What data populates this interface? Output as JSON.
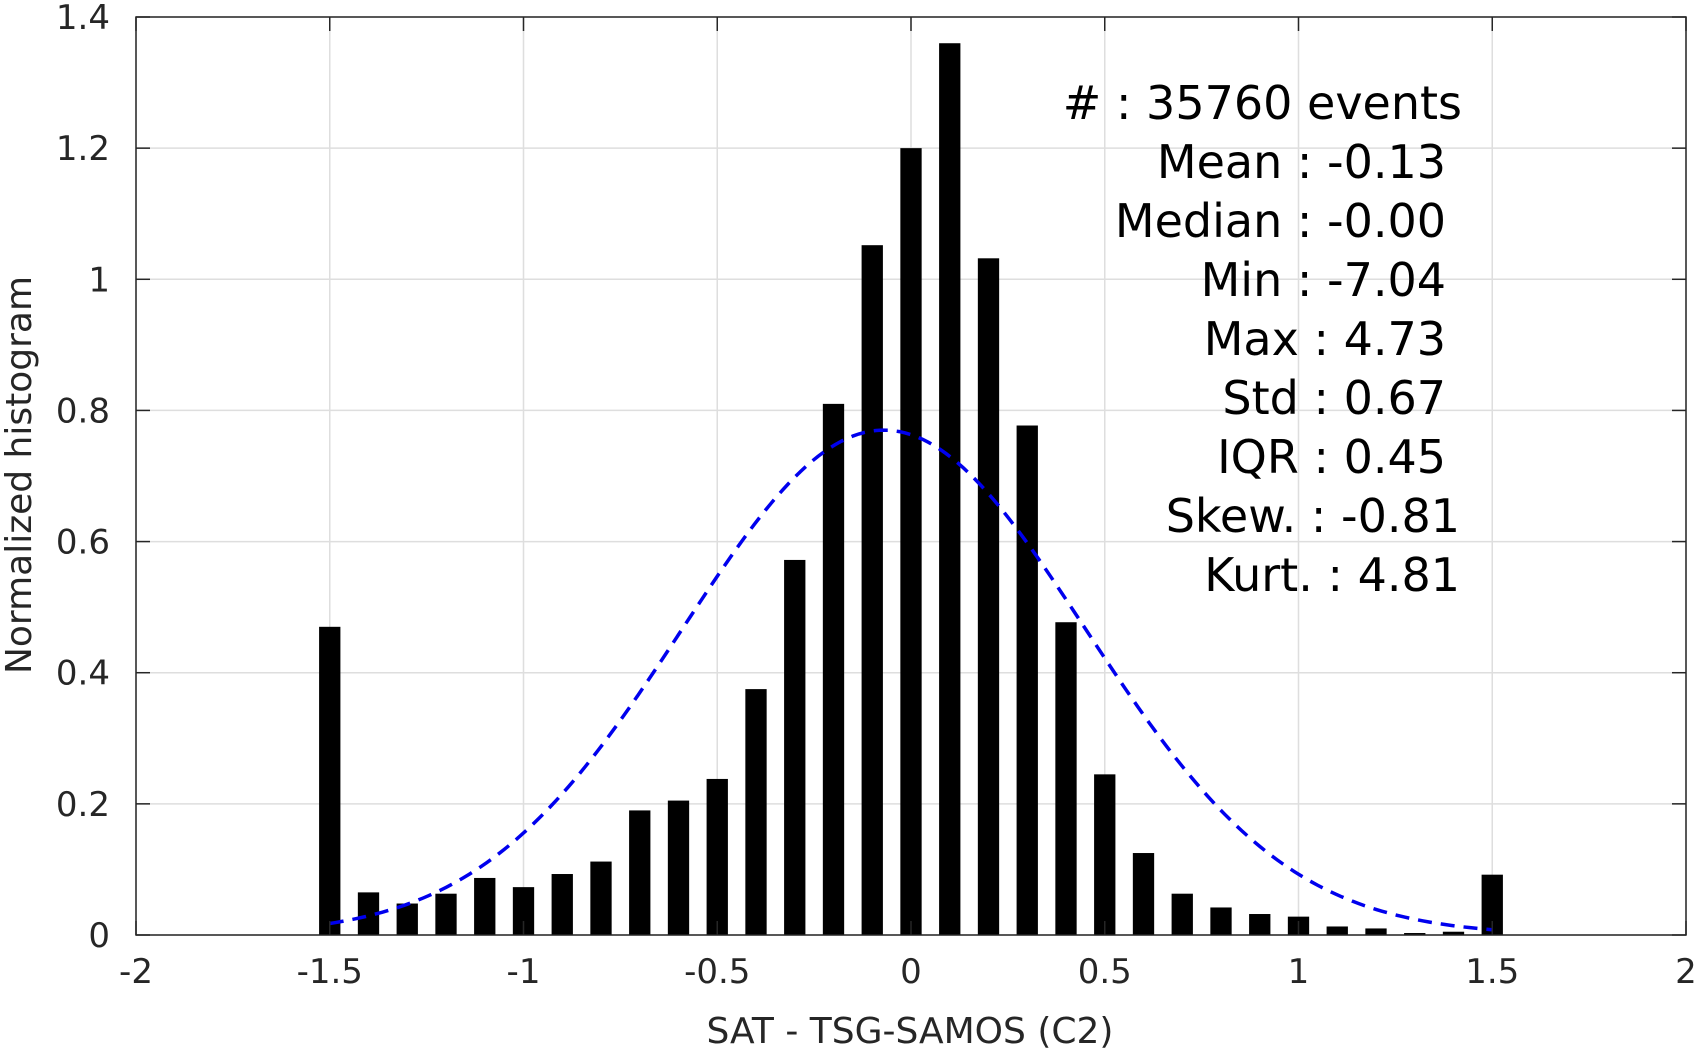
{
  "chart_data": {
    "type": "bar",
    "xlabel": "SAT - TSG-SAMOS (C2)",
    "ylabel": "Normalized histogram",
    "xlim": [
      -2,
      2
    ],
    "ylim": [
      0,
      1.4
    ],
    "xticks": [
      -2,
      -1.5,
      -1,
      -0.5,
      0,
      0.5,
      1,
      1.5,
      2
    ],
    "xtick_labels": [
      "-2",
      "-1.5",
      "-1",
      "-0.5",
      "0",
      "0.5",
      "1",
      "1.5",
      "2"
    ],
    "yticks": [
      0,
      0.2,
      0.4,
      0.6,
      0.8,
      1,
      1.2,
      1.4
    ],
    "ytick_labels": [
      "0",
      "0.2",
      "0.4",
      "0.6",
      "0.8",
      "1",
      "1.2",
      "1.4"
    ],
    "grid": true,
    "bar_width": 0.055,
    "bar_color": "#000000",
    "bins": [
      -1.5,
      -1.4,
      -1.3,
      -1.2,
      -1.1,
      -1.0,
      -0.9,
      -0.8,
      -0.7,
      -0.6,
      -0.5,
      -0.4,
      -0.3,
      -0.2,
      -0.1,
      0.0,
      0.1,
      0.2,
      0.3,
      0.4,
      0.5,
      0.6,
      0.7,
      0.8,
      0.9,
      1.0,
      1.1,
      1.2,
      1.3,
      1.4,
      1.5
    ],
    "values": [
      0.47,
      0.065,
      0.048,
      0.063,
      0.087,
      0.073,
      0.093,
      0.112,
      0.19,
      0.205,
      0.238,
      0.375,
      0.572,
      0.81,
      1.052,
      1.2,
      1.36,
      1.032,
      0.777,
      0.477,
      0.245,
      0.125,
      0.063,
      0.042,
      0.032,
      0.028,
      0.013,
      0.01,
      0.003,
      0.005,
      0.092
    ],
    "fit_curve": {
      "type": "gaussian",
      "mean": -0.07,
      "std": 0.52,
      "peak": 0.77,
      "x_range": [
        -1.5,
        1.5
      ],
      "color": "#0000ee",
      "style": "dashed"
    },
    "annotations": [
      {
        "label": "#",
        "value": ": 35760 events"
      },
      {
        "label": "Mean",
        "value": ": -0.13"
      },
      {
        "label": "Median",
        "value": ": -0.00"
      },
      {
        "label": "Min",
        "value": ": -7.04"
      },
      {
        "label": "Max",
        "value": ": 4.73"
      },
      {
        "label": "Std",
        "value": ": 0.67"
      },
      {
        "label": "IQR",
        "value": ": 0.45"
      },
      {
        "label": "Skew.",
        "value": ": -0.81"
      },
      {
        "label": "Kurt.",
        "value": ": 4.81"
      }
    ]
  }
}
